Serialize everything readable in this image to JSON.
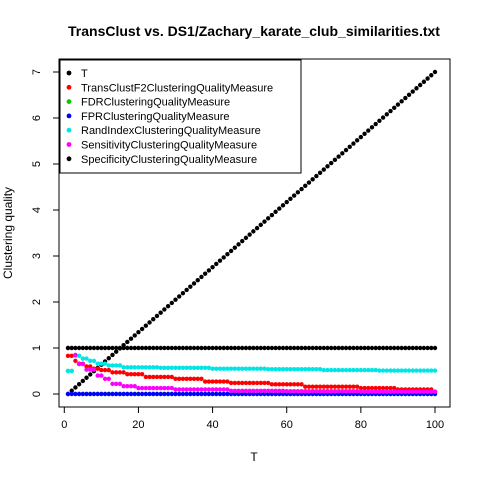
{
  "chart_data": {
    "type": "scatter",
    "title": "TransClust vs. DS1/Zachary_karate_club_similarities.txt",
    "xlabel": "T",
    "ylabel": "Clustering quality",
    "xlim": [
      1,
      100
    ],
    "ylim": [
      0,
      7
    ],
    "x_ticks": [
      "0",
      "20",
      "40",
      "60",
      "80",
      "100"
    ],
    "y_ticks": [
      "0",
      "1",
      "2",
      "3",
      "4",
      "5",
      "6",
      "7"
    ],
    "legend_position": "top-left",
    "grid": false,
    "x_start": 1,
    "x_end": 100,
    "x_step": 1,
    "series": [
      {
        "name": "T",
        "color": "#000000",
        "shape": "linear",
        "from": 0,
        "to": 7
      },
      {
        "name": "TransClustF2ClusteringQualityMeasure",
        "color": "#ff0000",
        "shape": "steps",
        "steps": [
          [
            1,
            0.83
          ],
          [
            2,
            0.83
          ],
          [
            3,
            0.72
          ],
          [
            4,
            0.66
          ],
          [
            6,
            0.6
          ],
          [
            8,
            0.55
          ],
          [
            10,
            0.52
          ],
          [
            13,
            0.47
          ],
          [
            17,
            0.43
          ],
          [
            22,
            0.37
          ],
          [
            30,
            0.33
          ],
          [
            38,
            0.27
          ],
          [
            45,
            0.24
          ],
          [
            56,
            0.21
          ],
          [
            65,
            0.16
          ],
          [
            80,
            0.13
          ],
          [
            90,
            0.1
          ],
          [
            100,
            0.05
          ]
        ]
      },
      {
        "name": "FDRClusteringQualityMeasure",
        "color": "#00cc00",
        "shape": "steps",
        "steps": [
          [
            1,
            0.5
          ],
          [
            3,
            0.0
          ]
        ]
      },
      {
        "name": "FPRClusteringQualityMeasure",
        "color": "#0000ff",
        "shape": "steps",
        "steps": [
          [
            1,
            0.0
          ]
        ]
      },
      {
        "name": "RandIndexClusteringQualityMeasure",
        "color": "#00e5e5",
        "shape": "steps",
        "steps": [
          [
            1,
            0.5
          ],
          [
            3,
            0.83
          ],
          [
            5,
            0.77
          ],
          [
            7,
            0.72
          ],
          [
            9,
            0.66
          ],
          [
            12,
            0.62
          ],
          [
            16,
            0.58
          ],
          [
            26,
            0.57
          ],
          [
            40,
            0.55
          ],
          [
            55,
            0.54
          ],
          [
            70,
            0.52
          ],
          [
            85,
            0.51
          ]
        ]
      },
      {
        "name": "SensitivityClusteringQualityMeasure",
        "color": "#ff00ff",
        "shape": "steps",
        "steps": [
          [
            1,
            1.0
          ],
          [
            3,
            0.85
          ],
          [
            4,
            0.65
          ],
          [
            6,
            0.53
          ],
          [
            9,
            0.4
          ],
          [
            11,
            0.33
          ],
          [
            13,
            0.22
          ],
          [
            16,
            0.17
          ],
          [
            20,
            0.13
          ],
          [
            30,
            0.1
          ],
          [
            45,
            0.07
          ],
          [
            60,
            0.06
          ],
          [
            80,
            0.05
          ]
        ]
      },
      {
        "name": "SpecificityClusteringQualityMeasure",
        "color": "#000000",
        "shape": "steps",
        "steps": [
          [
            1,
            1.0
          ]
        ]
      }
    ]
  }
}
